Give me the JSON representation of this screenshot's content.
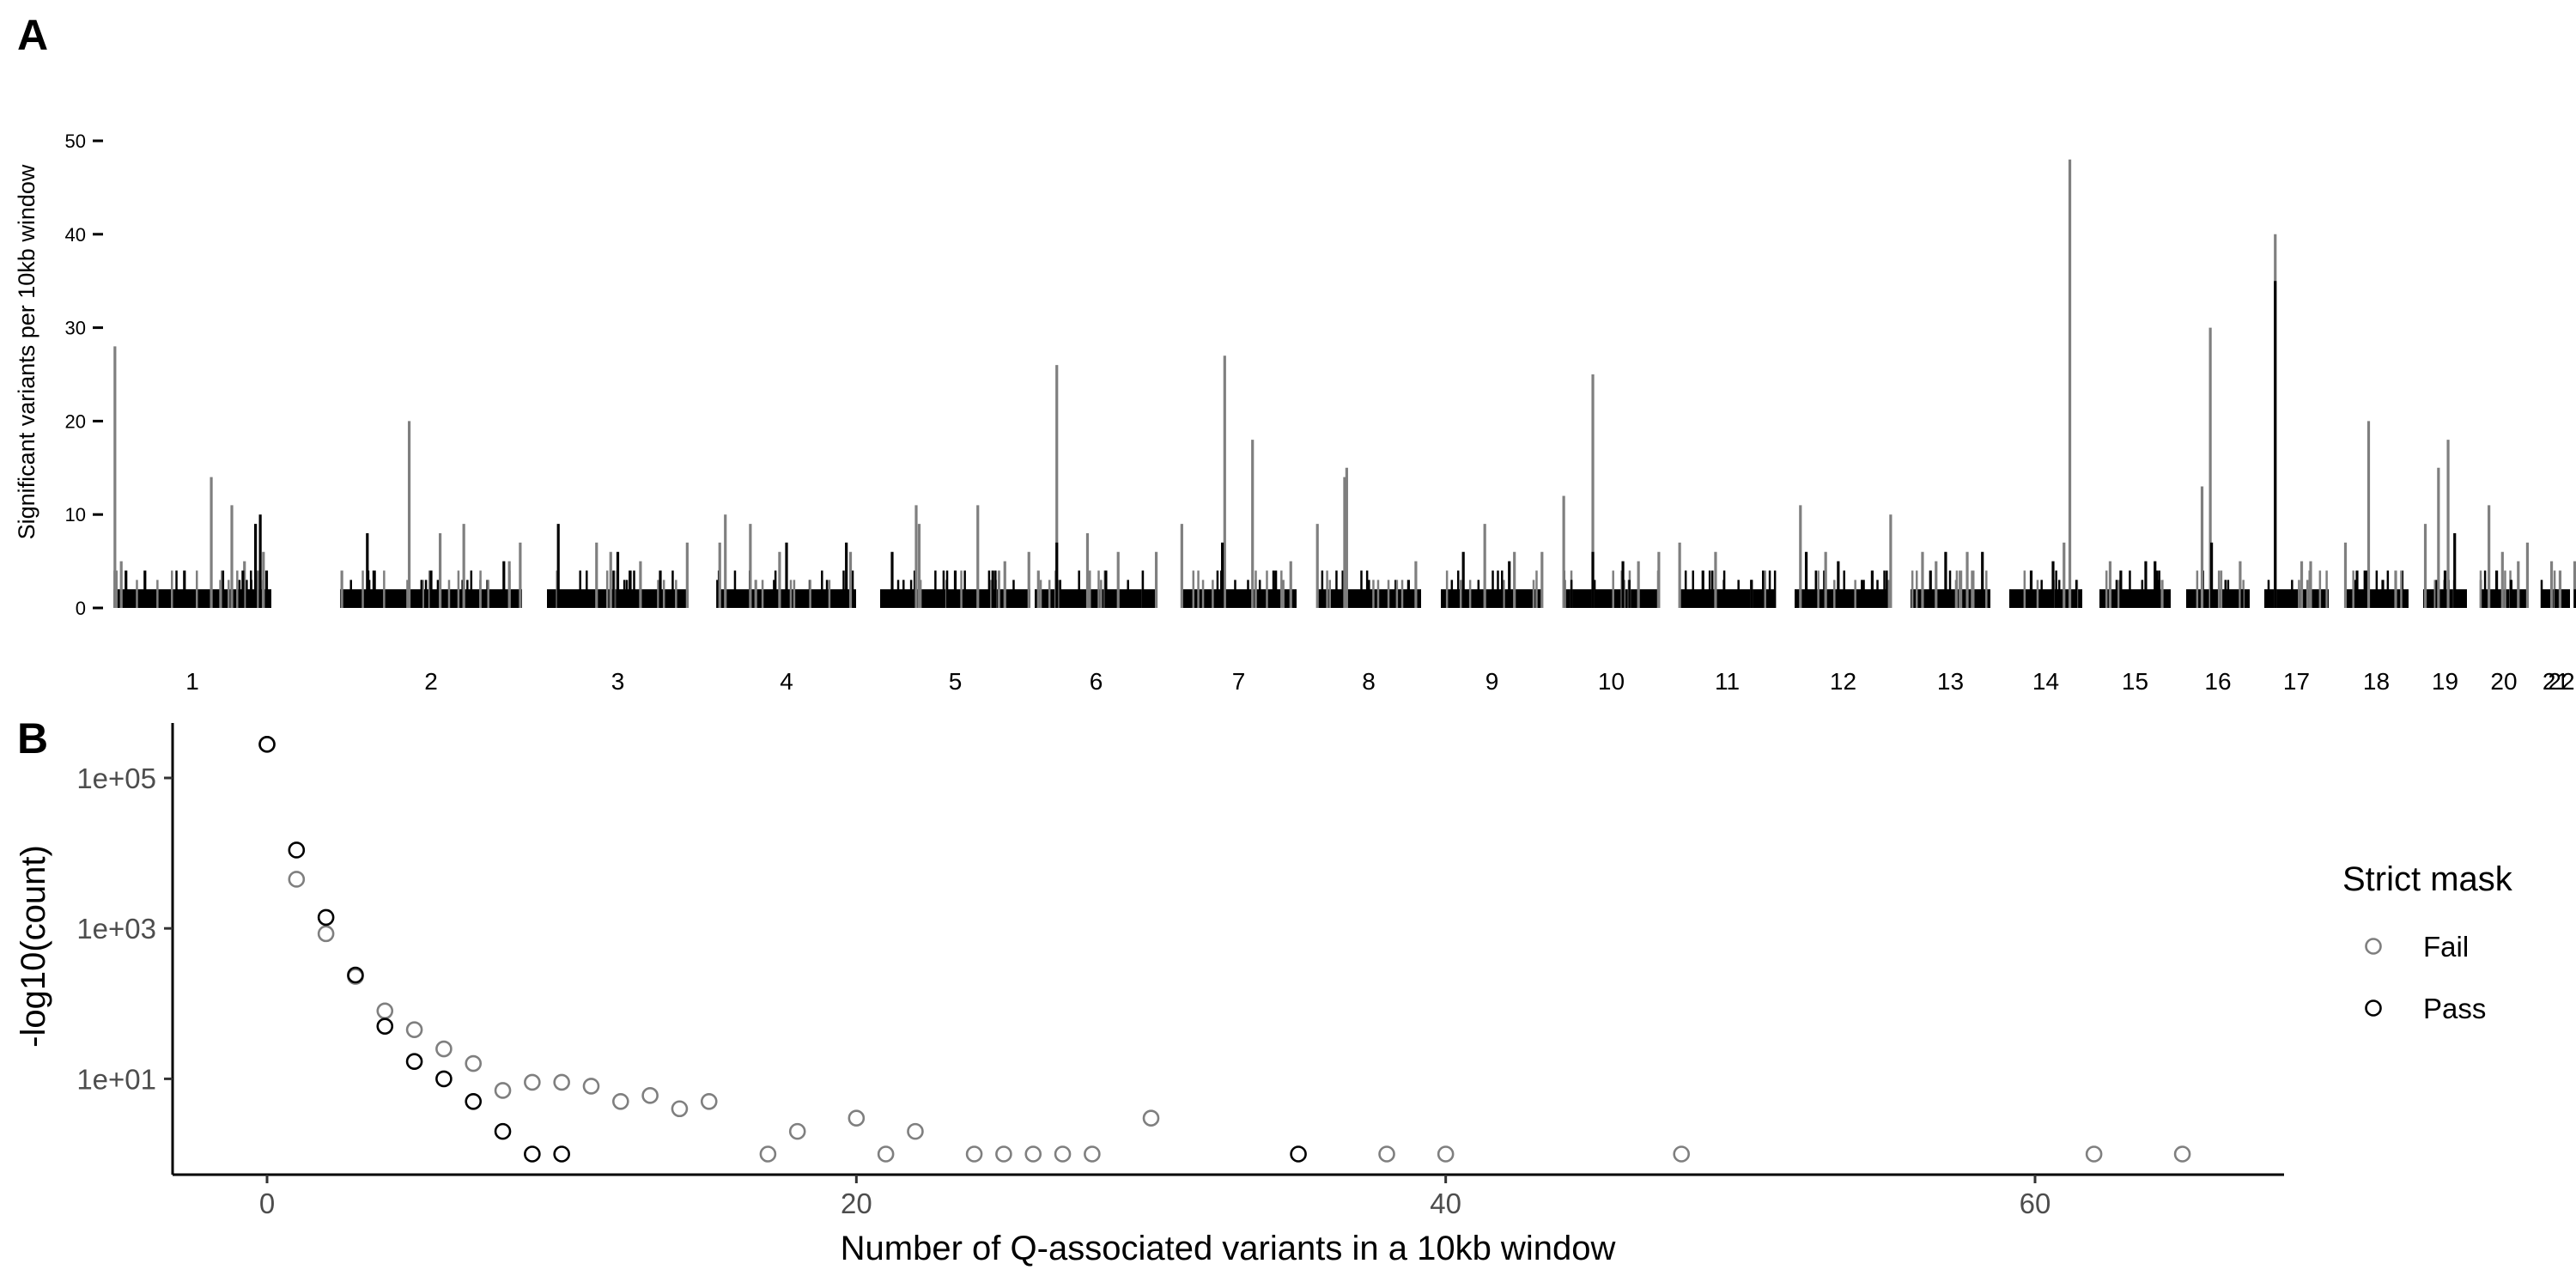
{
  "panel_a": {
    "letter": "A",
    "chart_data": {
      "type": "bar",
      "ylabel": "Significant variants per 10kb window",
      "xlabel": "",
      "ylim": [
        0,
        55
      ],
      "yticks": [
        0,
        10,
        20,
        30,
        40,
        50
      ],
      "chromosomes": [
        "1",
        "2",
        "3",
        "4",
        "5",
        "6",
        "7",
        "8",
        "9",
        "10",
        "11",
        "12",
        "13",
        "14",
        "15",
        "16",
        "17",
        "18",
        "19",
        "20",
        "21",
        "22"
      ],
      "series": [
        {
          "name": "Fail",
          "color": "#7f7f7f",
          "peaks": [
            {
              "chrom": "1",
              "pos": 0.01,
              "value": 28
            },
            {
              "chrom": "1",
              "pos": 0.05,
              "value": 5
            },
            {
              "chrom": "1",
              "pos": 0.62,
              "value": 14
            },
            {
              "chrom": "1",
              "pos": 0.75,
              "value": 11
            },
            {
              "chrom": "1",
              "pos": 0.83,
              "value": 5
            },
            {
              "chrom": "1",
              "pos": 0.95,
              "value": 6
            },
            {
              "chrom": "2",
              "pos": 0.01,
              "value": 4
            },
            {
              "chrom": "2",
              "pos": 0.38,
              "value": 20
            },
            {
              "chrom": "2",
              "pos": 0.55,
              "value": 8
            },
            {
              "chrom": "2",
              "pos": 0.68,
              "value": 9
            },
            {
              "chrom": "2",
              "pos": 0.93,
              "value": 5
            },
            {
              "chrom": "2",
              "pos": 0.99,
              "value": 7
            },
            {
              "chrom": "3",
              "pos": 0.35,
              "value": 7
            },
            {
              "chrom": "3",
              "pos": 0.45,
              "value": 6
            },
            {
              "chrom": "3",
              "pos": 0.66,
              "value": 5
            },
            {
              "chrom": "3",
              "pos": 0.99,
              "value": 7
            },
            {
              "chrom": "4",
              "pos": 0.02,
              "value": 7
            },
            {
              "chrom": "4",
              "pos": 0.06,
              "value": 10
            },
            {
              "chrom": "4",
              "pos": 0.24,
              "value": 9
            },
            {
              "chrom": "4",
              "pos": 0.45,
              "value": 6
            },
            {
              "chrom": "4",
              "pos": 0.96,
              "value": 6
            },
            {
              "chrom": "5",
              "pos": 0.24,
              "value": 11
            },
            {
              "chrom": "5",
              "pos": 0.26,
              "value": 9
            },
            {
              "chrom": "5",
              "pos": 0.65,
              "value": 11
            },
            {
              "chrom": "5",
              "pos": 0.83,
              "value": 5
            },
            {
              "chrom": "5",
              "pos": 0.99,
              "value": 6
            },
            {
              "chrom": "6",
              "pos": 0.03,
              "value": 4
            },
            {
              "chrom": "6",
              "pos": 0.18,
              "value": 26
            },
            {
              "chrom": "6",
              "pos": 0.43,
              "value": 8
            },
            {
              "chrom": "6",
              "pos": 0.68,
              "value": 6
            },
            {
              "chrom": "6",
              "pos": 0.99,
              "value": 6
            },
            {
              "chrom": "7",
              "pos": 0.01,
              "value": 9
            },
            {
              "chrom": "7",
              "pos": 0.38,
              "value": 27
            },
            {
              "chrom": "7",
              "pos": 0.62,
              "value": 18
            },
            {
              "chrom": "7",
              "pos": 0.95,
              "value": 5
            },
            {
              "chrom": "8",
              "pos": 0.01,
              "value": 9
            },
            {
              "chrom": "8",
              "pos": 0.27,
              "value": 14
            },
            {
              "chrom": "8",
              "pos": 0.29,
              "value": 15
            },
            {
              "chrom": "8",
              "pos": 0.95,
              "value": 5
            },
            {
              "chrom": "9",
              "pos": 0.43,
              "value": 9
            },
            {
              "chrom": "9",
              "pos": 0.72,
              "value": 6
            },
            {
              "chrom": "9",
              "pos": 0.99,
              "value": 6
            },
            {
              "chrom": "10",
              "pos": 0.01,
              "value": 12
            },
            {
              "chrom": "10",
              "pos": 0.31,
              "value": 25
            },
            {
              "chrom": "10",
              "pos": 0.78,
              "value": 5
            },
            {
              "chrom": "10",
              "pos": 0.99,
              "value": 6
            },
            {
              "chrom": "11",
              "pos": 0.01,
              "value": 7
            },
            {
              "chrom": "11",
              "pos": 0.38,
              "value": 6
            },
            {
              "chrom": "11",
              "pos": 0.75,
              "value": 3
            },
            {
              "chrom": "12",
              "pos": 0.06,
              "value": 11
            },
            {
              "chrom": "12",
              "pos": 0.32,
              "value": 6
            },
            {
              "chrom": "12",
              "pos": 0.99,
              "value": 10
            },
            {
              "chrom": "13",
              "pos": 0.15,
              "value": 6
            },
            {
              "chrom": "13",
              "pos": 0.32,
              "value": 5
            },
            {
              "chrom": "13",
              "pos": 0.71,
              "value": 6
            },
            {
              "chrom": "14",
              "pos": 0.75,
              "value": 7
            },
            {
              "chrom": "14",
              "pos": 0.83,
              "value": 48
            },
            {
              "chrom": "15",
              "pos": 0.15,
              "value": 5
            },
            {
              "chrom": "15",
              "pos": 0.88,
              "value": 3
            },
            {
              "chrom": "16",
              "pos": 0.25,
              "value": 13
            },
            {
              "chrom": "16",
              "pos": 0.38,
              "value": 30
            },
            {
              "chrom": "16",
              "pos": 0.85,
              "value": 5
            },
            {
              "chrom": "17",
              "pos": 0.17,
              "value": 40
            },
            {
              "chrom": "17",
              "pos": 0.58,
              "value": 5
            },
            {
              "chrom": "17",
              "pos": 0.72,
              "value": 5
            },
            {
              "chrom": "18",
              "pos": 0.02,
              "value": 7
            },
            {
              "chrom": "18",
              "pos": 0.38,
              "value": 20
            },
            {
              "chrom": "18",
              "pos": 0.8,
              "value": 4
            },
            {
              "chrom": "19",
              "pos": 0.05,
              "value": 9
            },
            {
              "chrom": "19",
              "pos": 0.35,
              "value": 15
            },
            {
              "chrom": "19",
              "pos": 0.57,
              "value": 18
            },
            {
              "chrom": "20",
              "pos": 0.19,
              "value": 11
            },
            {
              "chrom": "20",
              "pos": 0.47,
              "value": 6
            },
            {
              "chrom": "20",
              "pos": 0.8,
              "value": 5
            },
            {
              "chrom": "20",
              "pos": 0.99,
              "value": 7
            },
            {
              "chrom": "21",
              "pos": 0.35,
              "value": 5
            },
            {
              "chrom": "21",
              "pos": 0.65,
              "value": 4
            },
            {
              "chrom": "22",
              "pos": 0.25,
              "value": 5
            },
            {
              "chrom": "22",
              "pos": 0.6,
              "value": 4
            }
          ]
        },
        {
          "name": "Pass",
          "color": "#000000",
          "peaks": [
            {
              "chrom": "1",
              "pos": 0.08,
              "value": 4
            },
            {
              "chrom": "1",
              "pos": 0.2,
              "value": 4
            },
            {
              "chrom": "1",
              "pos": 0.45,
              "value": 4
            },
            {
              "chrom": "1",
              "pos": 0.82,
              "value": 4
            },
            {
              "chrom": "1",
              "pos": 0.9,
              "value": 9
            },
            {
              "chrom": "1",
              "pos": 0.93,
              "value": 10
            },
            {
              "chrom": "1",
              "pos": 0.97,
              "value": 4
            },
            {
              "chrom": "2",
              "pos": 0.15,
              "value": 8
            },
            {
              "chrom": "2",
              "pos": 0.5,
              "value": 4
            },
            {
              "chrom": "2",
              "pos": 0.9,
              "value": 5
            },
            {
              "chrom": "3",
              "pos": 0.08,
              "value": 9
            },
            {
              "chrom": "3",
              "pos": 0.5,
              "value": 6
            },
            {
              "chrom": "3",
              "pos": 0.8,
              "value": 4
            },
            {
              "chrom": "4",
              "pos": 0.5,
              "value": 7
            },
            {
              "chrom": "4",
              "pos": 0.93,
              "value": 7
            },
            {
              "chrom": "5",
              "pos": 0.08,
              "value": 6
            },
            {
              "chrom": "5",
              "pos": 0.5,
              "value": 4
            },
            {
              "chrom": "5",
              "pos": 0.75,
              "value": 4
            },
            {
              "chrom": "6",
              "pos": 0.18,
              "value": 7
            },
            {
              "chrom": "6",
              "pos": 0.58,
              "value": 4
            },
            {
              "chrom": "7",
              "pos": 0.36,
              "value": 7
            },
            {
              "chrom": "7",
              "pos": 0.82,
              "value": 4
            },
            {
              "chrom": "8",
              "pos": 0.5,
              "value": 3
            },
            {
              "chrom": "8",
              "pos": 0.88,
              "value": 3
            },
            {
              "chrom": "9",
              "pos": 0.22,
              "value": 6
            },
            {
              "chrom": "9",
              "pos": 0.67,
              "value": 5
            },
            {
              "chrom": "10",
              "pos": 0.31,
              "value": 6
            },
            {
              "chrom": "10",
              "pos": 0.62,
              "value": 5
            },
            {
              "chrom": "11",
              "pos": 0.25,
              "value": 4
            },
            {
              "chrom": "11",
              "pos": 0.75,
              "value": 3
            },
            {
              "chrom": "12",
              "pos": 0.12,
              "value": 6
            },
            {
              "chrom": "12",
              "pos": 0.45,
              "value": 5
            },
            {
              "chrom": "12",
              "pos": 0.8,
              "value": 4
            },
            {
              "chrom": "13",
              "pos": 0.25,
              "value": 4
            },
            {
              "chrom": "13",
              "pos": 0.44,
              "value": 6
            },
            {
              "chrom": "13",
              "pos": 0.9,
              "value": 6
            },
            {
              "chrom": "14",
              "pos": 0.3,
              "value": 4
            },
            {
              "chrom": "14",
              "pos": 0.6,
              "value": 5
            },
            {
              "chrom": "15",
              "pos": 0.3,
              "value": 4
            },
            {
              "chrom": "15",
              "pos": 0.65,
              "value": 5
            },
            {
              "chrom": "15",
              "pos": 0.78,
              "value": 5
            },
            {
              "chrom": "16",
              "pos": 0.4,
              "value": 7
            },
            {
              "chrom": "16",
              "pos": 0.88,
              "value": 2
            },
            {
              "chrom": "17",
              "pos": 0.17,
              "value": 35
            },
            {
              "chrom": "18",
              "pos": 0.2,
              "value": 4
            },
            {
              "chrom": "18",
              "pos": 0.6,
              "value": 3
            },
            {
              "chrom": "19",
              "pos": 0.5,
              "value": 4
            },
            {
              "chrom": "19",
              "pos": 0.72,
              "value": 8
            },
            {
              "chrom": "20",
              "pos": 0.35,
              "value": 4
            },
            {
              "chrom": "20",
              "pos": 0.65,
              "value": 3
            },
            {
              "chrom": "21",
              "pos": 0.5,
              "value": 2
            },
            {
              "chrom": "22",
              "pos": 0.5,
              "value": 2
            }
          ]
        }
      ]
    }
  },
  "panel_b": {
    "letter": "B",
    "chart_data": {
      "type": "scatter",
      "title": "",
      "xlabel": "Number of Q-associated variants in a 10kb window",
      "ylabel": "-log10(count)",
      "xlim": [
        -3.5,
        68
      ],
      "ylim_log10": [
        -0.35,
        5.75
      ],
      "y_scale": "log10",
      "xticks": [
        0,
        20,
        40,
        60
      ],
      "yticks": [
        {
          "value": 10,
          "label": "1e+01"
        },
        {
          "value": 1000,
          "label": "1e+03"
        },
        {
          "value": 100000,
          "label": "1e+05"
        }
      ],
      "legend": {
        "title": "Strict mask",
        "position": "right"
      },
      "series": [
        {
          "name": "Fail",
          "color": "#7f7f7f",
          "points": [
            {
              "x": 0,
              "y": 280000
            },
            {
              "x": 1,
              "y": 4500
            },
            {
              "x": 2,
              "y": 850
            },
            {
              "x": 3,
              "y": 230
            },
            {
              "x": 4,
              "y": 80
            },
            {
              "x": 5,
              "y": 45
            },
            {
              "x": 6,
              "y": 25
            },
            {
              "x": 7,
              "y": 16
            },
            {
              "x": 8,
              "y": 7
            },
            {
              "x": 9,
              "y": 9
            },
            {
              "x": 10,
              "y": 9
            },
            {
              "x": 11,
              "y": 8
            },
            {
              "x": 12,
              "y": 5
            },
            {
              "x": 13,
              "y": 6
            },
            {
              "x": 14,
              "y": 4
            },
            {
              "x": 15,
              "y": 5
            },
            {
              "x": 17,
              "y": 1
            },
            {
              "x": 18,
              "y": 2
            },
            {
              "x": 20,
              "y": 3
            },
            {
              "x": 21,
              "y": 1
            },
            {
              "x": 22,
              "y": 2
            },
            {
              "x": 24,
              "y": 1
            },
            {
              "x": 25,
              "y": 1
            },
            {
              "x": 26,
              "y": 1
            },
            {
              "x": 27,
              "y": 1
            },
            {
              "x": 28,
              "y": 1
            },
            {
              "x": 30,
              "y": 3
            },
            {
              "x": 38,
              "y": 1
            },
            {
              "x": 40,
              "y": 1
            },
            {
              "x": 48,
              "y": 1
            },
            {
              "x": 62,
              "y": 1
            },
            {
              "x": 65,
              "y": 1
            }
          ]
        },
        {
          "name": "Pass",
          "color": "#000000",
          "points": [
            {
              "x": 0,
              "y": 280000
            },
            {
              "x": 1,
              "y": 11000
            },
            {
              "x": 2,
              "y": 1400
            },
            {
              "x": 3,
              "y": 240
            },
            {
              "x": 4,
              "y": 50
            },
            {
              "x": 5,
              "y": 17
            },
            {
              "x": 6,
              "y": 10
            },
            {
              "x": 7,
              "y": 5
            },
            {
              "x": 8,
              "y": 2
            },
            {
              "x": 9,
              "y": 1
            },
            {
              "x": 10,
              "y": 1
            },
            {
              "x": 35,
              "y": 1
            }
          ]
        }
      ]
    }
  }
}
